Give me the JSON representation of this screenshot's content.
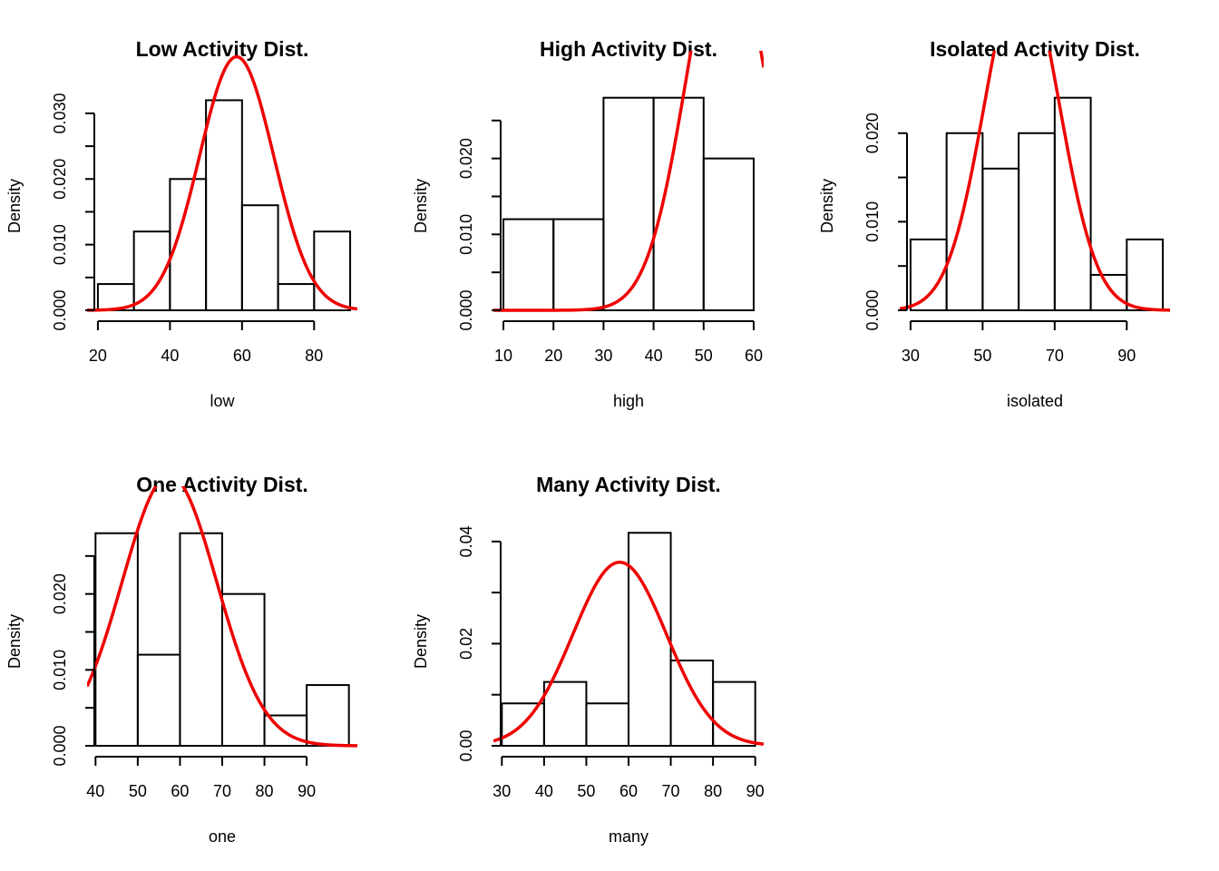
{
  "chart_data": [
    {
      "type": "bar",
      "title": "Low Activity Dist.",
      "xlabel": "low",
      "ylabel": "Density",
      "bin_edges": [
        20,
        30,
        40,
        50,
        60,
        70,
        80,
        90
      ],
      "values": [
        0.004,
        0.012,
        0.02,
        0.032,
        0.016,
        0.004,
        0.012
      ],
      "xticks": [
        20,
        40,
        60,
        80
      ],
      "xtick_labels": [
        "20",
        "40",
        "60",
        "80"
      ],
      "yticks": [
        0,
        0.005,
        0.01,
        0.015,
        0.02,
        0.025,
        0.03
      ],
      "ytick_labels": [
        "0.000",
        "",
        "0.010",
        "",
        "0.020",
        "",
        "0.030"
      ],
      "xlim": [
        17,
        92
      ],
      "ylim": [
        0,
        0.034
      ],
      "curve": {
        "mean": 58.5,
        "sd": 10.33,
        "color": "#ee0000"
      }
    },
    {
      "type": "bar",
      "title": "High Activity Dist.",
      "xlabel": "high",
      "ylabel": "Density",
      "bin_edges": [
        10,
        20,
        30,
        40,
        50,
        60
      ],
      "values": [
        0.012,
        0.012,
        0.028,
        0.028,
        0.02
      ],
      "xticks": [
        10,
        20,
        30,
        40,
        50,
        60
      ],
      "xtick_labels": [
        "10",
        "20",
        "30",
        "40",
        "50",
        "60"
      ],
      "yticks": [
        0,
        0.005,
        0.01,
        0.015,
        0.02,
        0.025
      ],
      "ytick_labels": [
        "0.000",
        "",
        "0.010",
        "",
        "0.020",
        ""
      ],
      "xlim": [
        8,
        62
      ],
      "ylim": [
        0,
        0.0294
      ],
      "curve": {
        "mean": 54.45,
        "sd": 7.89,
        "color": "#ee0000"
      }
    },
    {
      "type": "bar",
      "title": "Isolated Activity Dist.",
      "xlabel": "isolated",
      "ylabel": "Density",
      "bin_edges": [
        30,
        40,
        50,
        60,
        70,
        80,
        90,
        100
      ],
      "values": [
        0.008,
        0.02,
        0.016,
        0.02,
        0.024,
        0.004,
        0.008
      ],
      "xticks": [
        30,
        50,
        70,
        90
      ],
      "xtick_labels": [
        "30",
        "50",
        "70",
        "90"
      ],
      "yticks": [
        0,
        0.005,
        0.01,
        0.015,
        0.02
      ],
      "ytick_labels": [
        "0.000",
        "",
        "0.010",
        "",
        "0.020"
      ],
      "xlim": [
        27,
        102
      ],
      "ylim": [
        0,
        0.0252
      ],
      "curve": {
        "mean": 60.9,
        "sd": 10.38,
        "color": "#ee0000"
      }
    },
    {
      "type": "bar",
      "title": "One Activity Dist.",
      "xlabel": "one",
      "ylabel": "Density",
      "bin_edges": [
        40,
        50,
        60,
        70,
        80,
        90,
        100
      ],
      "values": [
        0.028,
        0.012,
        0.028,
        0.02,
        0.004,
        0.008
      ],
      "xticks": [
        40,
        50,
        60,
        70,
        80,
        90
      ],
      "xtick_labels": [
        "40",
        "50",
        "60",
        "70",
        "80",
        "90"
      ],
      "yticks": [
        0,
        0.005,
        0.01,
        0.015,
        0.02,
        0.025
      ],
      "ytick_labels": [
        "0.000",
        "",
        "0.010",
        "",
        "0.020",
        ""
      ],
      "xlim": [
        38,
        102
      ],
      "ylim": [
        0,
        0.0294
      ],
      "curve": {
        "mean": 57.5,
        "sd": 11.2,
        "color": "#ee0000"
      }
    },
    {
      "type": "bar",
      "title": "Many Activity Dist.",
      "xlabel": "many",
      "ylabel": "Density",
      "bin_edges": [
        30,
        40,
        50,
        60,
        70,
        80,
        90
      ],
      "values": [
        0.0083,
        0.0125,
        0.0083,
        0.0417,
        0.0167,
        0.0125
      ],
      "xticks": [
        30,
        40,
        50,
        60,
        70,
        80,
        90
      ],
      "xtick_labels": [
        "30",
        "40",
        "50",
        "60",
        "70",
        "80",
        "90"
      ],
      "yticks": [
        0,
        0.01,
        0.02,
        0.03,
        0.04
      ],
      "ytick_labels": [
        "0.00",
        "",
        "0.02",
        "",
        "0.04"
      ],
      "xlim": [
        28,
        92
      ],
      "ylim": [
        0,
        0.0437
      ],
      "curve": {
        "mean": 57.9,
        "sd": 11.1,
        "color": "#ee0000"
      }
    }
  ]
}
